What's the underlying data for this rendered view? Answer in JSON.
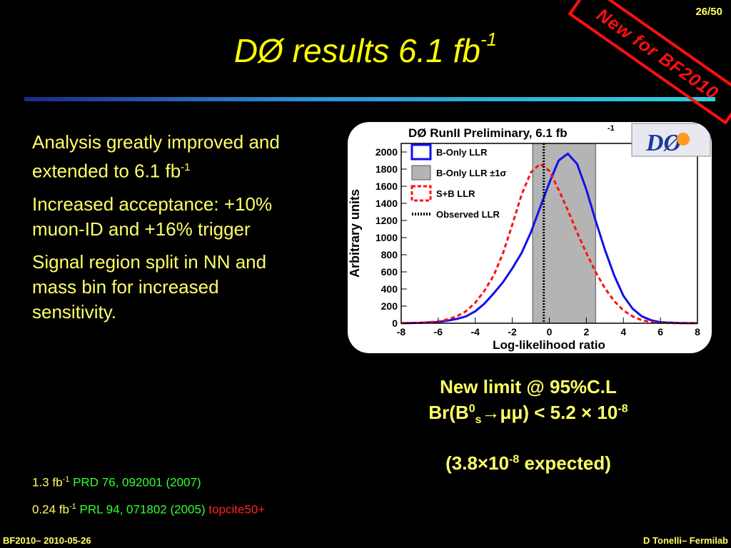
{
  "slide": {
    "number": "26/50"
  },
  "title": {
    "main": "DØ results 6.1 fb",
    "sup": "-1"
  },
  "stamp": {
    "text": "New for BF2010"
  },
  "bullets": [
    {
      "text": "Analysis greatly improved and extended to 6.1 fb",
      "sup": "-1"
    },
    {
      "text": "Increased acceptance: +10% muon-ID and +16% trigger",
      "sup": ""
    },
    {
      "text": "Signal region split in NN and mass bin for increased sensitivity.",
      "sup": ""
    }
  ],
  "refs": [
    {
      "lumi": "1.3 fb",
      "sup": "-1",
      "cite": "PRD 76, 092001 (2007)",
      "extra": ""
    },
    {
      "lumi": "0.24 fb",
      "sup": "-1",
      "cite": "PRL 94, 071802 (2005)",
      "extra": "topcite50+"
    }
  ],
  "limit": {
    "line1": "New limit @ 95%C.L",
    "br_prefix": "Br(B",
    "br_sup": "0",
    "br_sub": "s",
    "br_decay": "→μμ) < 5.2 × 10",
    "br_exp": "-8",
    "expected_prefix": "(3.8×10",
    "expected_exp": "-8",
    "expected_suffix": " expected)"
  },
  "footer": {
    "left": "BF2010– 2010-05-26",
    "right": "D Tonelli– Fermilab"
  },
  "chart_data": {
    "type": "line",
    "title": "DØ RunII Preliminary, 6.1 fb",
    "title_sup": "-1",
    "logo_text": "DØ",
    "xlabel": "Log-likelihood ratio",
    "ylabel": "Arbitrary units",
    "xlim": [
      -8,
      8
    ],
    "ylim": [
      0,
      2100
    ],
    "xticks": [
      -8,
      -6,
      -4,
      -2,
      0,
      2,
      4,
      6,
      8
    ],
    "yticks": [
      0,
      200,
      400,
      600,
      800,
      1000,
      1200,
      1400,
      1600,
      1800,
      2000
    ],
    "legend": [
      {
        "name": "B-Only LLR",
        "style": "blue-box"
      },
      {
        "name": "B-Only LLR ±1σ",
        "style": "gray-fill"
      },
      {
        "name": "S+B LLR",
        "style": "red-dashed-box"
      },
      {
        "name": "Observed LLR",
        "style": "black-dotted-line"
      }
    ],
    "band": [
      -0.9,
      2.5
    ],
    "observed_x": -0.3,
    "series": [
      {
        "name": "B-Only LLR",
        "color": "#1010ee",
        "dash": "",
        "x": [
          -8,
          -7,
          -6,
          -5.5,
          -5,
          -4.5,
          -4,
          -3.5,
          -3,
          -2.5,
          -2,
          -1.5,
          -1,
          -0.5,
          0,
          0.5,
          1,
          1.5,
          2,
          2.5,
          3,
          3.5,
          4,
          4.5,
          5,
          5.5,
          6,
          7,
          8
        ],
        "values": [
          0,
          5,
          15,
          30,
          50,
          80,
          140,
          230,
          350,
          480,
          640,
          820,
          1060,
          1350,
          1640,
          1900,
          1980,
          1860,
          1560,
          1200,
          860,
          560,
          320,
          170,
          80,
          35,
          12,
          3,
          0
        ]
      },
      {
        "name": "S+B LLR",
        "color": "#ff1010",
        "dash": "6,4",
        "x": [
          -8,
          -7,
          -6,
          -5.5,
          -5,
          -4.5,
          -4,
          -3.5,
          -3,
          -2.5,
          -2,
          -1.5,
          -1,
          -0.5,
          0,
          0.5,
          1,
          1.5,
          2,
          2.5,
          3,
          3.5,
          4,
          4.5,
          5,
          5.5,
          6,
          7,
          8
        ],
        "values": [
          0,
          5,
          20,
          45,
          80,
          140,
          240,
          380,
          560,
          820,
          1150,
          1500,
          1760,
          1860,
          1780,
          1560,
          1320,
          1060,
          820,
          600,
          410,
          260,
          150,
          80,
          35,
          15,
          5,
          0,
          0
        ]
      }
    ]
  }
}
